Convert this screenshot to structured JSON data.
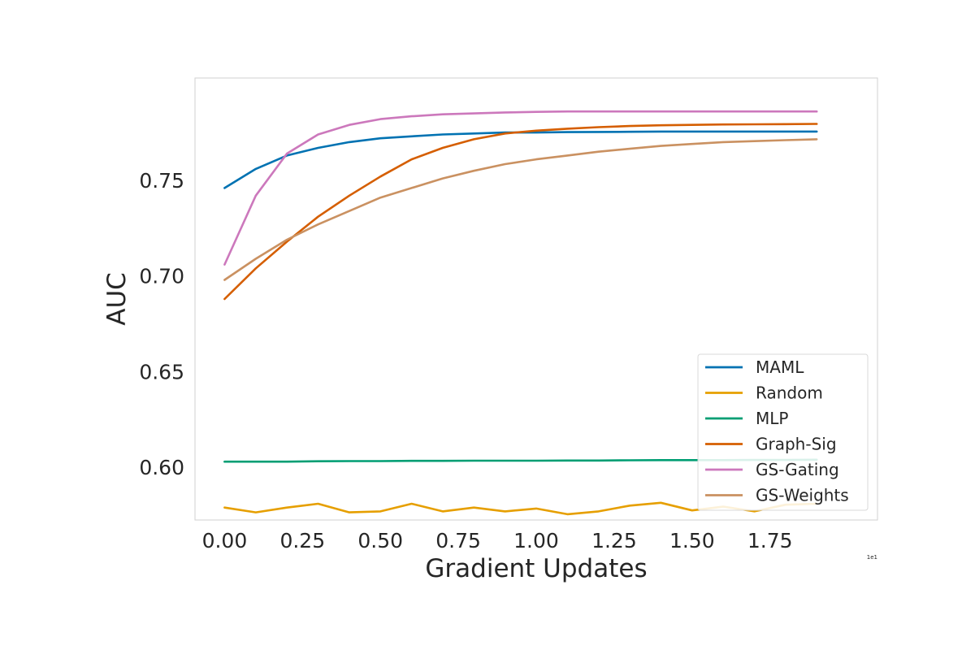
{
  "chart_data": {
    "type": "line",
    "title": "",
    "xlabel": "Gradient Updates",
    "ylabel": "AUC",
    "x_offset_label": "1e1",
    "xlim": [
      -0.095,
      2.095
    ],
    "ylim": [
      0.5725,
      0.8035
    ],
    "x_ticks": [
      0.0,
      0.25,
      0.5,
      0.75,
      1.0,
      1.25,
      1.5,
      1.75
    ],
    "x_tick_labels": [
      "0.00",
      "0.25",
      "0.50",
      "0.75",
      "1.00",
      "1.25",
      "1.50",
      "1.75"
    ],
    "y_ticks": [
      0.6,
      0.65,
      0.7,
      0.75
    ],
    "y_tick_labels": [
      "0.60",
      "0.65",
      "0.70",
      "0.75"
    ],
    "grid": false,
    "legend_position": "lower right",
    "x": [
      0.0,
      0.1,
      0.2,
      0.3,
      0.4,
      0.5,
      0.6,
      0.7,
      0.8,
      0.9,
      1.0,
      1.1,
      1.2,
      1.3,
      1.4,
      1.5,
      1.6,
      1.7,
      1.8,
      1.9
    ],
    "series": [
      {
        "name": "MAML",
        "color": "#0072b2",
        "values": [
          0.746,
          0.756,
          0.763,
          0.767,
          0.77,
          0.772,
          0.773,
          0.774,
          0.7745,
          0.775,
          0.775,
          0.7752,
          0.7753,
          0.7754,
          0.7755,
          0.7755,
          0.7755,
          0.7755,
          0.7755,
          0.7755
        ]
      },
      {
        "name": "Random",
        "color": "#e69f00",
        "values": [
          0.579,
          0.5765,
          0.579,
          0.581,
          0.5765,
          0.577,
          0.581,
          0.577,
          0.579,
          0.577,
          0.5785,
          0.5755,
          0.577,
          0.58,
          0.5815,
          0.5775,
          0.5795,
          0.577,
          0.5805,
          0.581
        ]
      },
      {
        "name": "MLP",
        "color": "#009e73",
        "values": [
          0.603,
          0.603,
          0.603,
          0.6032,
          0.6033,
          0.6033,
          0.6034,
          0.6034,
          0.6035,
          0.6035,
          0.6035,
          0.6036,
          0.6036,
          0.6037,
          0.6038,
          0.6038,
          0.6038,
          0.6039,
          0.6039,
          0.604
        ]
      },
      {
        "name": "Graph-Sig",
        "color": "#d55e00",
        "values": [
          0.688,
          0.704,
          0.718,
          0.731,
          0.742,
          0.752,
          0.761,
          0.767,
          0.7715,
          0.7745,
          0.776,
          0.777,
          0.7778,
          0.7784,
          0.7788,
          0.779,
          0.7792,
          0.7793,
          0.7794,
          0.7795
        ]
      },
      {
        "name": "GS-Gating",
        "color": "#cc78bc",
        "values": [
          0.706,
          0.742,
          0.764,
          0.774,
          0.779,
          0.782,
          0.7835,
          0.7845,
          0.785,
          0.7855,
          0.7858,
          0.786,
          0.786,
          0.786,
          0.786,
          0.786,
          0.786,
          0.786,
          0.786,
          0.786
        ]
      },
      {
        "name": "GS-Weights",
        "color": "#ca9161",
        "values": [
          0.698,
          0.709,
          0.719,
          0.727,
          0.734,
          0.741,
          0.746,
          0.751,
          0.755,
          0.7585,
          0.761,
          0.763,
          0.765,
          0.7665,
          0.768,
          0.769,
          0.77,
          0.7705,
          0.771,
          0.7715
        ]
      }
    ]
  }
}
